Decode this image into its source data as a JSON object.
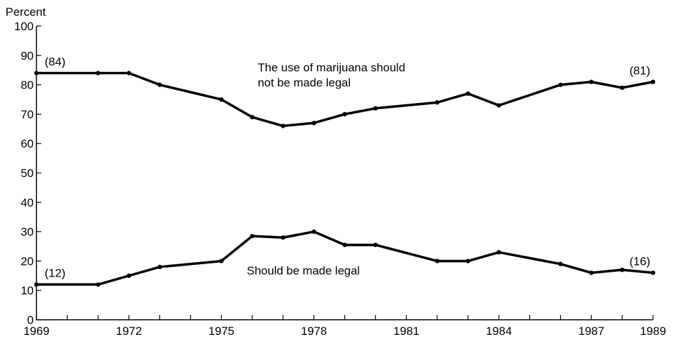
{
  "chart_data": {
    "type": "line",
    "ylabel": "Percent",
    "xlabel": "",
    "xlim": [
      1969,
      1989
    ],
    "ylim": [
      0,
      100
    ],
    "yticks": [
      0,
      10,
      20,
      30,
      40,
      50,
      60,
      70,
      80,
      90,
      100
    ],
    "xticks": [
      1969,
      1970,
      1971,
      1972,
      1973,
      1974,
      1975,
      1976,
      1977,
      1978,
      1979,
      1980,
      1981,
      1982,
      1983,
      1984,
      1985,
      1986,
      1987,
      1988,
      1989
    ],
    "xtick_labels": [
      {
        "x": 1969,
        "label": "1969"
      },
      {
        "x": 1972,
        "label": "1972"
      },
      {
        "x": 1975,
        "label": "1975"
      },
      {
        "x": 1978,
        "label": "1978"
      },
      {
        "x": 1981,
        "label": "1981"
      },
      {
        "x": 1984,
        "label": "1984"
      },
      {
        "x": 1987,
        "label": "1987"
      },
      {
        "x": 1989,
        "label": "1989"
      }
    ],
    "grid": false,
    "series": [
      {
        "name": "The use of marijuana should not be made legal",
        "x": [
          1969,
          1971,
          1972,
          1973,
          1975,
          1976,
          1977,
          1978,
          1979,
          1980,
          1982,
          1983,
          1984,
          1986,
          1987,
          1988,
          1989
        ],
        "y": [
          84,
          84,
          84,
          80,
          75,
          69,
          66,
          67,
          70,
          72,
          74,
          77,
          73,
          80,
          81,
          79,
          81
        ]
      },
      {
        "name": "Should be made legal",
        "x": [
          1969,
          1971,
          1972,
          1973,
          1975,
          1976,
          1977,
          1978,
          1979,
          1980,
          1982,
          1983,
          1984,
          1986,
          1987,
          1988,
          1989
        ],
        "y": [
          12,
          12,
          15,
          18,
          20,
          28.5,
          28,
          30,
          25.5,
          25.5,
          20,
          20,
          23,
          19,
          16,
          17,
          16
        ]
      }
    ],
    "annotations": [
      {
        "text": "(84)",
        "x": 1969,
        "y": 84
      },
      {
        "text": "(81)",
        "x": 1989,
        "y": 81
      },
      {
        "text": "(12)",
        "x": 1969,
        "y": 12
      },
      {
        "text": "(16)",
        "x": 1989,
        "y": 16
      }
    ],
    "series_labels": [
      {
        "lines": [
          "The use of marijuana should",
          "not be made legal"
        ]
      },
      {
        "lines": [
          "Should be made legal"
        ]
      }
    ]
  }
}
